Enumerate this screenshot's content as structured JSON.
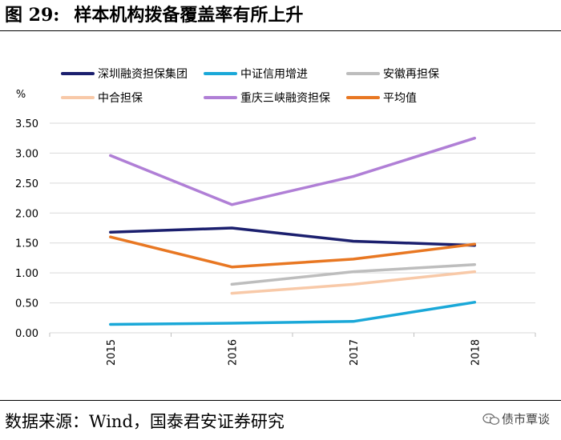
{
  "header": {
    "figure_number": "图 29:",
    "title": "样本机构拨备覆盖率有所上升"
  },
  "source": {
    "text": "数据来源：Wind，国泰君安证券研究"
  },
  "watermark": {
    "text": "债市覃谈",
    "icon": "wechat-chat-icon"
  },
  "chart_data": {
    "type": "line",
    "title": "样本机构拨备覆盖率有所上升",
    "ylabel": "%",
    "xlabel": "",
    "ylim": [
      0,
      3.5
    ],
    "yticks": [
      "0.00",
      "0.50",
      "1.00",
      "1.50",
      "2.00",
      "2.50",
      "3.00",
      "3.50"
    ],
    "categories": [
      "2015",
      "2016",
      "2017",
      "2018"
    ],
    "grid": true,
    "legend_position": "top",
    "series": [
      {
        "name": "深圳融资担保集团",
        "color": "#1b1f6e",
        "values": [
          1.68,
          1.75,
          1.53,
          1.46
        ]
      },
      {
        "name": "中证信用增进",
        "color": "#1aa8d8",
        "values": [
          0.14,
          0.16,
          0.19,
          0.51
        ]
      },
      {
        "name": "安徽再担保",
        "color": "#bdbdbd",
        "values": [
          null,
          0.81,
          1.02,
          1.14
        ]
      },
      {
        "name": "中合担保",
        "color": "#f8c9a8",
        "values": [
          null,
          0.66,
          0.81,
          1.02
        ]
      },
      {
        "name": "重庆三峡融资担保",
        "color": "#b07fd6",
        "values": [
          2.96,
          2.14,
          2.61,
          3.25
        ]
      },
      {
        "name": "平均值",
        "color": "#e87722",
        "values": [
          1.6,
          1.1,
          1.23,
          1.48
        ]
      }
    ]
  }
}
